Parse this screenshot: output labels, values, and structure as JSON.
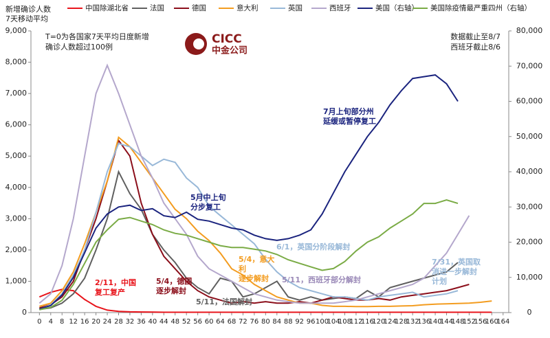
{
  "chart_data": {
    "type": "line",
    "y_label": [
      "新增确诊人数",
      "7天移动平均"
    ],
    "note": [
      "T=0为各国家7天平均日度新增",
      "确诊人数超过100例"
    ],
    "data_note": [
      "数据截止至8/7",
      "西班牙截止8/6"
    ],
    "logo": {
      "name": "CICC",
      "subtitle": "中金公司"
    },
    "x": [
      0,
      4,
      8,
      12,
      16,
      20,
      24,
      28,
      32,
      36,
      40,
      44,
      48,
      52,
      56,
      60,
      64,
      68,
      72,
      76,
      80,
      84,
      88,
      92,
      96,
      100,
      104,
      108,
      112,
      116,
      120,
      124,
      128,
      132,
      136,
      140,
      144,
      148,
      152,
      156,
      160
    ],
    "xlim": [
      -3,
      166
    ],
    "xticks": [
      0,
      4,
      8,
      12,
      16,
      20,
      24,
      28,
      32,
      36,
      40,
      44,
      48,
      52,
      56,
      60,
      64,
      68,
      72,
      76,
      80,
      84,
      88,
      92,
      96,
      100,
      104,
      108,
      112,
      116,
      120,
      124,
      128,
      132,
      136,
      140,
      144,
      148,
      152,
      156,
      160,
      164
    ],
    "ylim": [
      0,
      9000
    ],
    "yticks": [
      0,
      {
        "value": 1000,
        "label": "1,000"
      },
      {
        "value": 2000,
        "label": "2,000"
      },
      {
        "value": 3000,
        "label": "3,000"
      },
      {
        "value": 4000,
        "label": "4,000"
      },
      {
        "value": 5000,
        "label": "5,000"
      },
      {
        "value": 6000,
        "label": "6,000"
      },
      {
        "value": 7000,
        "label": "7,000"
      },
      {
        "value": 8000,
        "label": "8,000"
      },
      {
        "value": 9000,
        "label": "9,000"
      }
    ],
    "y2lim": [
      0,
      80000
    ],
    "y2ticks": [
      0,
      {
        "value": 10000,
        "label": "10,000"
      },
      {
        "value": 20000,
        "label": "20,000"
      },
      {
        "value": 30000,
        "label": "30,000"
      },
      {
        "value": 40000,
        "label": "40,000"
      },
      {
        "value": 50000,
        "label": "50,000"
      },
      {
        "value": 60000,
        "label": "60,000"
      },
      {
        "value": 70000,
        "label": "70,000"
      },
      {
        "value": 80000,
        "label": "80,000"
      }
    ],
    "series": [
      {
        "name": "中国除湖北省",
        "color": "#e8141b",
        "values": [
          500,
          650,
          740,
          700,
          420,
          200,
          80,
          40,
          25,
          20,
          15,
          12,
          10,
          10,
          10,
          10,
          10,
          10,
          10,
          10,
          10,
          10,
          10,
          10,
          10,
          10,
          10,
          10,
          10,
          10,
          10,
          10,
          10,
          10,
          10,
          10,
          10,
          10,
          10,
          10,
          10
        ]
      },
      {
        "name": "法国",
        "color": "#5f5f5f",
        "values": [
          100,
          150,
          300,
          600,
          1100,
          2000,
          3000,
          4500,
          3800,
          3300,
          2500,
          2000,
          1600,
          1100,
          800,
          600,
          1100,
          1000,
          500,
          600,
          800,
          1000,
          500,
          400,
          500,
          400,
          450,
          500,
          450,
          700,
          500,
          800,
          900,
          1000,
          1100,
          1200,
          1300,
          1600,
          null,
          null,
          null
        ]
      },
      {
        "name": "德国",
        "color": "#8b0e1a",
        "values": [
          150,
          250,
          500,
          1000,
          2000,
          3000,
          4200,
          5500,
          5000,
          3500,
          2500,
          1800,
          1400,
          1000,
          700,
          500,
          400,
          300,
          350,
          300,
          350,
          300,
          300,
          350,
          300,
          400,
          500,
          450,
          400,
          400,
          450,
          400,
          500,
          550,
          600,
          650,
          700,
          800,
          900,
          null,
          null
        ]
      },
      {
        "name": "意大利",
        "color": "#f39c1f",
        "values": [
          200,
          300,
          700,
          1300,
          2200,
          3200,
          4200,
          5600,
          5300,
          4800,
          4300,
          3800,
          3300,
          3000,
          2600,
          2300,
          1900,
          1400,
          1200,
          900,
          700,
          500,
          400,
          300,
          300,
          230,
          200,
          200,
          190,
          190,
          200,
          200,
          210,
          220,
          250,
          270,
          280,
          290,
          300,
          330,
          370
        ]
      },
      {
        "name": "英国",
        "color": "#98b8d8",
        "values": [
          100,
          250,
          600,
          1200,
          2000,
          3200,
          4500,
          5400,
          5300,
          5000,
          4700,
          4900,
          4800,
          4300,
          4000,
          3400,
          3100,
          2800,
          2500,
          2200,
          1700,
          1300,
          1000,
          800,
          700,
          600,
          500,
          500,
          450,
          400,
          500,
          550,
          600,
          650,
          500,
          550,
          600,
          700,
          null,
          null,
          null
        ]
      },
      {
        "name": "西班牙",
        "color": "#b4a7cc",
        "values": [
          300,
          600,
          1500,
          3000,
          5000,
          7000,
          7900,
          7000,
          6000,
          5000,
          4300,
          3500,
          3000,
          2500,
          1800,
          1400,
          1200,
          1000,
          800,
          600,
          500,
          400,
          350,
          300,
          300,
          300,
          300,
          350,
          400,
          500,
          600,
          700,
          800,
          900,
          1100,
          1500,
          1900,
          2500,
          3100,
          null,
          null
        ]
      },
      {
        "name": "美国（右轴）",
        "color": "#1a237e",
        "axis": "y2",
        "values": [
          1000,
          2000,
          5000,
          10000,
          17000,
          24000,
          28000,
          30000,
          30500,
          29000,
          29500,
          27500,
          27000,
          28500,
          26500,
          26000,
          25000,
          24000,
          23500,
          22000,
          21000,
          20500,
          21000,
          22000,
          23500,
          28000,
          34000,
          40000,
          45000,
          50000,
          54000,
          59000,
          63000,
          66500,
          67000,
          67500,
          65000,
          60000,
          null,
          null,
          null
        ]
      },
      {
        "name": "美国除疫情最严重四州（右轴）",
        "color": "#7aab45",
        "axis": "y2",
        "values": [
          800,
          1500,
          3500,
          8000,
          14000,
          20000,
          23500,
          26500,
          27000,
          26000,
          25000,
          23500,
          22500,
          22000,
          21000,
          20000,
          19000,
          18500,
          18500,
          18000,
          17500,
          16500,
          15000,
          14000,
          13000,
          12000,
          12500,
          14500,
          17500,
          20000,
          21500,
          24000,
          26000,
          28000,
          31000,
          31000,
          32000,
          31000,
          null,
          null,
          null
        ]
      }
    ],
    "annotations": [
      {
        "text": [
          "2/11，中国",
          "复工复产"
        ],
        "color": "#e8141b"
      },
      {
        "text": [
          "5/4，德国",
          "逐步解封"
        ],
        "color": "#8b0e1a"
      },
      {
        "text": [
          "5/11，法国解封"
        ],
        "color": "#5f5f5f"
      },
      {
        "text": [
          "5/4，意大",
          "利",
          "逐步解封"
        ],
        "color": "#f39c1f"
      },
      {
        "text": [
          "5/11，西班牙部分解封"
        ],
        "color": "#9b8ab8"
      },
      {
        "text": [
          "6/1，英国分阶段解封"
        ],
        "color": "#98b8d8"
      },
      {
        "text": [
          "7/31，英国取",
          "消进一步解封",
          "计划"
        ],
        "color": "#98b8d8"
      },
      {
        "text": [
          "5月中上旬",
          "分步复工"
        ],
        "color": "#1a237e"
      },
      {
        "text": [
          "7月上旬部分州",
          "延缓或暂停复工"
        ],
        "color": "#1a237e"
      }
    ]
  }
}
